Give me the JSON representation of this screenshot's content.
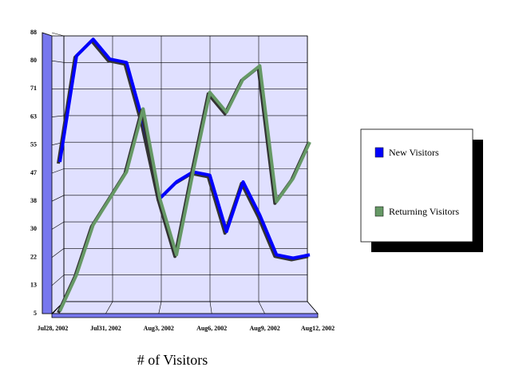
{
  "chart_data": {
    "type": "line",
    "title": "# of Visitors",
    "categories": [
      "Jul28, 2002",
      null,
      null,
      "Jul31, 2002",
      null,
      null,
      "Aug3, 2002",
      null,
      null,
      "Aug6, 2002",
      null,
      null,
      "Aug9, 2002",
      null,
      null,
      "Aug12, 2002"
    ],
    "series": [
      {
        "name": "New Visitors",
        "color": "#0000ff",
        "values": [
          50,
          82,
          87,
          81,
          80,
          62,
          39,
          44,
          47,
          46,
          29,
          44,
          34,
          22,
          21,
          22
        ]
      },
      {
        "name": "Returning Visitors",
        "color": "#669966",
        "values": [
          5,
          16,
          31,
          39,
          47,
          66,
          39,
          22,
          47,
          71,
          65,
          75,
          79,
          38,
          45,
          56
        ]
      }
    ],
    "ylim": [
      5,
      88
    ],
    "yticks": [
      5,
      {
        "value": 13.3,
        "label": "13"
      },
      {
        "value": 21.6,
        "label": "22"
      },
      {
        "value": 29.9,
        "label": "30"
      },
      {
        "value": 38.2,
        "label": "38"
      },
      {
        "value": 46.5,
        "label": "47"
      },
      {
        "value": 54.8,
        "label": "55"
      },
      {
        "value": 63.1,
        "label": "63"
      },
      {
        "value": 71.4,
        "label": "71"
      },
      {
        "value": 79.7,
        "label": "80"
      },
      88
    ],
    "grid": true,
    "legend": "right"
  }
}
